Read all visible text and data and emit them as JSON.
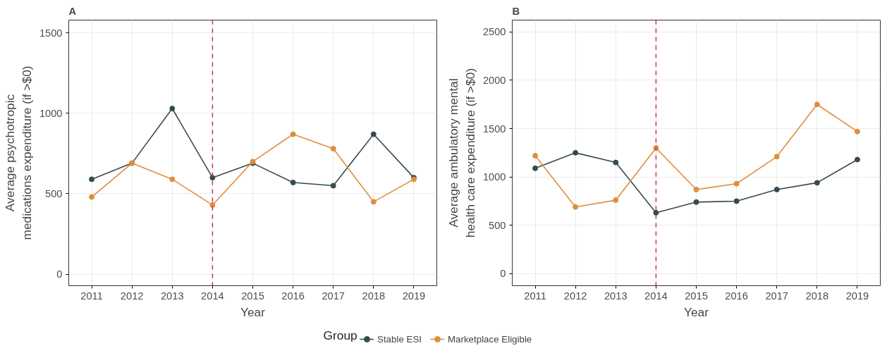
{
  "chart_data": [
    {
      "type": "line",
      "title": "A",
      "xlabel": "Year",
      "ylabel": "Average psychotropic\nmedications expenditure (if >$0)",
      "legend_title": "Group",
      "legend": "bottom",
      "grid": true,
      "marker": "circle",
      "line_style": "solid",
      "x": [
        2011,
        2012,
        2013,
        2014,
        2015,
        2016,
        2017,
        2018,
        2019
      ],
      "xlim": [
        2010.43,
        2019.57
      ],
      "xticks": [
        2011,
        2012,
        2013,
        2014,
        2015,
        2016,
        2017,
        2018,
        2019
      ],
      "ylim": [
        -72,
        1580
      ],
      "yticks": [
        0,
        500,
        1000,
        1500
      ],
      "ref_lines": [
        {
          "axis": "x",
          "value": 2014,
          "color": "#c0393b",
          "line_style": "dashed"
        }
      ],
      "series": [
        {
          "name": "Stable ESI",
          "color": "#364a52",
          "values": [
            590,
            690,
            1030,
            600,
            690,
            570,
            550,
            870,
            600
          ]
        },
        {
          "name": "Marketplace Eligible",
          "color": "#e08e3c",
          "values": [
            480,
            690,
            590,
            430,
            700,
            870,
            780,
            450,
            590
          ]
        }
      ]
    },
    {
      "type": "line",
      "title": "B",
      "xlabel": "Year",
      "ylabel": "Average ambulatory mental\nhealth care expenditure (if >$0)",
      "grid": true,
      "marker": "circle",
      "line_style": "solid",
      "x": [
        2011,
        2012,
        2013,
        2014,
        2015,
        2016,
        2017,
        2018,
        2019
      ],
      "xlim": [
        2010.43,
        2019.57
      ],
      "xticks": [
        2011,
        2012,
        2013,
        2014,
        2015,
        2016,
        2017,
        2018,
        2019
      ],
      "ylim": [
        -125,
        2623
      ],
      "yticks": [
        0,
        500,
        1000,
        1500,
        2000,
        2500
      ],
      "ref_lines": [
        {
          "axis": "x",
          "value": 2014,
          "color": "#c0393b",
          "line_style": "dashed"
        }
      ],
      "series": [
        {
          "color": "#364a52",
          "values": [
            1090,
            1250,
            1150,
            630,
            740,
            750,
            870,
            940,
            1180
          ]
        },
        {
          "color": "#e08e3c",
          "values": [
            1220,
            690,
            760,
            1300,
            870,
            930,
            1210,
            1750,
            1470
          ]
        }
      ]
    }
  ]
}
